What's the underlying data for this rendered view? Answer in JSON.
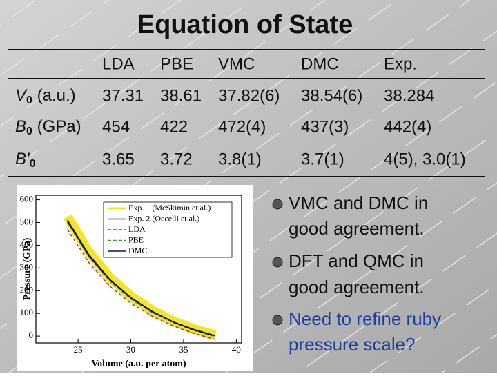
{
  "title": "Equation of State",
  "table": {
    "columns": [
      "LDA",
      "PBE",
      "VMC",
      "DMC",
      "Exp."
    ],
    "rows": [
      {
        "symbol": "V",
        "sub": "0",
        "unit": "(a.u.)",
        "cells": [
          "37.31",
          "38.61",
          "37.82(6)",
          "38.54(6)",
          "38.284"
        ]
      },
      {
        "symbol": "B",
        "sub": "0",
        "unit": "(GPa)",
        "cells": [
          "454",
          "422",
          "472(4)",
          "437(3)",
          "442(4)"
        ]
      },
      {
        "symbol": "B'",
        "sub": "0",
        "cells": [
          "3.65",
          "3.72",
          "3.8(1)",
          "3.7(1)",
          "4(5), 3.0(1)"
        ]
      }
    ]
  },
  "bullets": [
    {
      "lines": [
        "VMC and DMC in",
        "good agreement."
      ],
      "color": "#111111"
    },
    {
      "lines": [
        "DFT and QMC in",
        "good agreement."
      ],
      "color": "#111111"
    },
    {
      "lines": [
        "Need to refine ruby",
        "pressure scale?"
      ],
      "color": "#1f3fa0"
    }
  ],
  "chart_data": {
    "type": "line",
    "xlabel": "Volume (a.u. per atom)",
    "ylabel": "Pressure (GPa)",
    "x": [
      24,
      26,
      28,
      30,
      32,
      34,
      36,
      38
    ],
    "series": [
      {
        "name": "Exp. 1 (McSkimin et al.)",
        "color": "#f2e200",
        "style": "band",
        "values": [
          526,
          371,
          259,
          176,
          114,
          66,
          31,
          3
        ]
      },
      {
        "name": "Exp. 2 (Occelli et al.)",
        "color": "#1c1ca0",
        "style": "solid",
        "values": [
          510,
          360,
          250,
          170,
          110,
          63,
          29,
          2
        ]
      },
      {
        "name": "LDA",
        "color": "#e02020",
        "style": "dashed",
        "values": [
          470,
          325,
          220,
          145,
          88,
          45,
          12,
          -15
        ]
      },
      {
        "name": "PBE",
        "color": "#30a030",
        "style": "dashed",
        "values": [
          500,
          350,
          242,
          163,
          104,
          58,
          24,
          -3
        ]
      },
      {
        "name": "DMC",
        "color": "#101040",
        "style": "solid",
        "values": [
          505,
          355,
          247,
          168,
          108,
          62,
          27,
          1
        ]
      }
    ],
    "xlim": [
      21,
      40.5
    ],
    "ylim": [
      -30,
      620
    ],
    "xticks": [
      25,
      30,
      35,
      40
    ],
    "yticks": [
      0,
      100,
      200,
      300,
      400,
      500,
      600
    ]
  }
}
